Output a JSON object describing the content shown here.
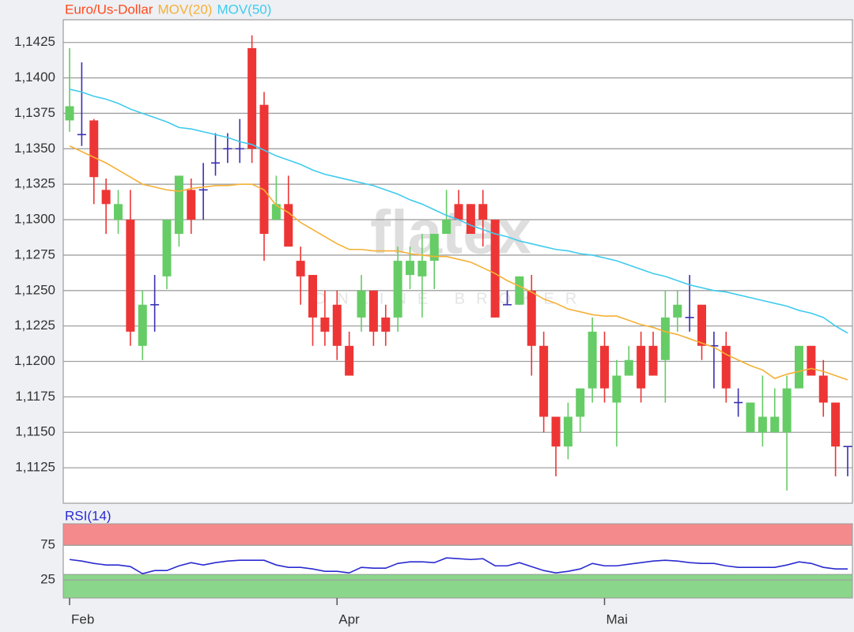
{
  "chart_data": [
    {
      "type": "candlestick",
      "watermark": "flatex",
      "watermark_sub": "ONLINE BROKER",
      "categories": [
        "Feb",
        null,
        null,
        null,
        null,
        null,
        null,
        null,
        null,
        null,
        null,
        null,
        null,
        null,
        null,
        null,
        null,
        null,
        null,
        null,
        null,
        null,
        "Apr",
        null,
        null,
        null,
        null,
        null,
        null,
        null,
        null,
        null,
        null,
        null,
        null,
        null,
        null,
        null,
        null,
        null,
        null,
        null,
        null,
        null,
        "Mai",
        null,
        null,
        null,
        null,
        null,
        null,
        null,
        null,
        null,
        null,
        null,
        null,
        null,
        null,
        null,
        null,
        null,
        null,
        null,
        null
      ],
      "series": [
        {
          "name": "Euro/Us-Dollar",
          "type": "candlestick",
          "color": "#ff4a1c",
          "color_up": "#66cc66",
          "color_down": "#ee3535",
          "color_flat": "#3a2fb0",
          "open": [
            1.137,
            1.136,
            1.137,
            1.1321,
            1.13,
            1.13,
            1.1211,
            1.124,
            1.126,
            1.129,
            1.1321,
            1.1321,
            1.134,
            1.135,
            1.135,
            1.1421,
            1.1381,
            1.13,
            1.1311,
            1.1271,
            1.1261,
            1.1231,
            1.124,
            1.1211,
            1.1231,
            1.125,
            1.1231,
            1.1231,
            1.1261,
            1.126,
            1.1271,
            1.129,
            1.1311,
            1.1311,
            1.1311,
            1.13,
            1.124,
            1.124,
            1.125,
            1.1211,
            1.1161,
            1.114,
            1.1161,
            1.1181,
            1.1211,
            1.1171,
            1.119,
            1.1211,
            1.1211,
            1.1201,
            1.1231,
            1.1231,
            1.124,
            1.1211,
            1.1211,
            1.1171,
            1.115,
            1.115,
            1.115,
            1.115,
            1.1181,
            1.1211,
            1.119,
            1.1171,
            1.114
          ],
          "high": [
            1.1421,
            1.1411,
            1.1371,
            1.1329,
            1.1321,
            1.1321,
            1.125,
            1.1261,
            1.13,
            1.1331,
            1.1329,
            1.134,
            1.1361,
            1.1361,
            1.1371,
            1.143,
            1.139,
            1.1331,
            1.1331,
            1.1281,
            1.1261,
            1.125,
            1.125,
            1.1221,
            1.1261,
            1.125,
            1.124,
            1.1281,
            1.1281,
            1.129,
            1.129,
            1.1321,
            1.1321,
            1.1311,
            1.1321,
            1.13,
            1.125,
            1.126,
            1.1261,
            1.1221,
            1.1161,
            1.1171,
            1.1181,
            1.1231,
            1.1221,
            1.1201,
            1.1211,
            1.1221,
            1.1221,
            1.125,
            1.125,
            1.1261,
            1.124,
            1.1221,
            1.1221,
            1.1181,
            1.1171,
            1.119,
            1.1181,
            1.119,
            1.1211,
            1.1211,
            1.1201,
            1.1171,
            1.114
          ],
          "low": [
            1.1362,
            1.1352,
            1.1311,
            1.129,
            1.129,
            1.1211,
            1.1201,
            1.1221,
            1.1251,
            1.1281,
            1.129,
            1.13,
            1.1331,
            1.134,
            1.134,
            1.134,
            1.1271,
            1.13,
            1.1281,
            1.124,
            1.1211,
            1.1211,
            1.1201,
            1.119,
            1.1221,
            1.1211,
            1.1211,
            1.1221,
            1.1251,
            1.1231,
            1.1251,
            1.129,
            1.13,
            1.129,
            1.1281,
            1.1231,
            1.124,
            1.124,
            1.119,
            1.115,
            1.1119,
            1.1131,
            1.115,
            1.1171,
            1.1171,
            1.114,
            1.119,
            1.1171,
            1.119,
            1.1171,
            1.1221,
            1.1221,
            1.1201,
            1.1181,
            1.1171,
            1.1161,
            1.115,
            1.114,
            1.115,
            1.1109,
            1.1181,
            1.119,
            1.1161,
            1.1119,
            1.1119
          ],
          "close": [
            1.138,
            1.136,
            1.133,
            1.1311,
            1.1311,
            1.1221,
            1.124,
            1.124,
            1.13,
            1.1331,
            1.13,
            1.1321,
            1.134,
            1.135,
            1.135,
            1.135,
            1.129,
            1.1311,
            1.1281,
            1.126,
            1.1231,
            1.1221,
            1.1211,
            1.119,
            1.125,
            1.1221,
            1.1221,
            1.1271,
            1.1271,
            1.1271,
            1.129,
            1.13,
            1.13,
            1.129,
            1.13,
            1.1231,
            1.124,
            1.126,
            1.1211,
            1.1161,
            1.114,
            1.1161,
            1.1181,
            1.1221,
            1.1181,
            1.119,
            1.1201,
            1.1181,
            1.119,
            1.1231,
            1.124,
            1.1231,
            1.1211,
            1.1211,
            1.1181,
            1.1171,
            1.1171,
            1.1161,
            1.1161,
            1.1181,
            1.1211,
            1.119,
            1.1171,
            1.114,
            1.114
          ]
        },
        {
          "name": "MOV(20)",
          "type": "line",
          "color": "#f5b035",
          "values": [
            1.1352,
            1.1348,
            1.1344,
            1.134,
            1.1335,
            1.133,
            1.1325,
            1.1323,
            1.1321,
            1.132,
            1.1322,
            1.1323,
            1.1324,
            1.1324,
            1.1325,
            1.1325,
            1.1321,
            1.131,
            1.1305,
            1.1298,
            1.1293,
            1.1288,
            1.1283,
            1.1279,
            1.1279,
            1.1278,
            1.1278,
            1.1278,
            1.1276,
            1.1275,
            1.1274,
            1.1274,
            1.1272,
            1.127,
            1.1266,
            1.1262,
            1.1257,
            1.1253,
            1.1249,
            1.1244,
            1.1241,
            1.1237,
            1.1235,
            1.1233,
            1.1232,
            1.1232,
            1.1229,
            1.1226,
            1.1224,
            1.1221,
            1.1219,
            1.1216,
            1.1213,
            1.121,
            1.1205,
            1.1201,
            1.1197,
            1.1194,
            1.1188,
            1.1191,
            1.1193,
            1.1195,
            1.1193,
            1.119,
            1.1187
          ]
        },
        {
          "name": "MOV(50)",
          "type": "line",
          "color": "#3fcbee",
          "values": [
            1.1392,
            1.139,
            1.1387,
            1.1385,
            1.1382,
            1.1378,
            1.1375,
            1.1372,
            1.1369,
            1.1365,
            1.1364,
            1.1362,
            1.136,
            1.1358,
            1.1355,
            1.1353,
            1.1349,
            1.1345,
            1.1342,
            1.1339,
            1.1335,
            1.1332,
            1.133,
            1.1328,
            1.1326,
            1.1324,
            1.1321,
            1.1318,
            1.1314,
            1.1311,
            1.1307,
            1.1303,
            1.13,
            1.1296,
            1.1293,
            1.129,
            1.1288,
            1.1285,
            1.1283,
            1.1281,
            1.1279,
            1.1278,
            1.1276,
            1.1275,
            1.1273,
            1.1271,
            1.1268,
            1.1265,
            1.1262,
            1.126,
            1.1257,
            1.1254,
            1.1252,
            1.125,
            1.1249,
            1.1247,
            1.1245,
            1.1243,
            1.1241,
            1.1239,
            1.1236,
            1.1234,
            1.1231,
            1.1225,
            1.122
          ]
        }
      ],
      "ylim": [
        1.11,
        1.1441
      ],
      "yticks": [
        {
          "value": 1.1125,
          "label": "1,1125"
        },
        {
          "value": 1.115,
          "label": "1,1150"
        },
        {
          "value": 1.1175,
          "label": "1,1175"
        },
        {
          "value": 1.12,
          "label": "1,1200"
        },
        {
          "value": 1.1225,
          "label": "1,1225"
        },
        {
          "value": 1.125,
          "label": "1,1250"
        },
        {
          "value": 1.1275,
          "label": "1,1275"
        },
        {
          "value": 1.13,
          "label": "1,1300"
        },
        {
          "value": 1.1325,
          "label": "1,1325"
        },
        {
          "value": 1.135,
          "label": "1,1350"
        },
        {
          "value": 1.1375,
          "label": "1,1375"
        },
        {
          "value": 1.14,
          "label": "1,1400"
        },
        {
          "value": 1.1425,
          "label": "1,1425"
        }
      ],
      "grid": true
    },
    {
      "type": "line",
      "series": [
        {
          "name": "RSI(14)",
          "color": "#2a2ad0",
          "values": [
            54.5,
            52.3,
            48.9,
            46.6,
            46.6,
            44.3,
            34.1,
            38.6,
            38.6,
            45.4,
            50.0,
            46.6,
            50.0,
            52.3,
            53.4,
            53.4,
            53.4,
            46.6,
            43.2,
            43.2,
            40.9,
            37.5,
            37.5,
            35.2,
            43.2,
            42.0,
            42.0,
            48.9,
            51.1,
            51.1,
            50.0,
            56.8,
            55.7,
            54.5,
            55.7,
            45.4,
            45.4,
            50.0,
            44.3,
            38.6,
            35.2,
            37.5,
            40.9,
            48.9,
            45.4,
            45.4,
            47.7,
            50.0,
            52.3,
            53.4,
            52.3,
            50.0,
            48.9,
            48.9,
            45.4,
            43.2,
            43.2,
            43.2,
            43.2,
            46.6,
            51.1,
            48.9,
            43.2,
            40.9,
            40.9
          ]
        }
      ],
      "bands": [
        {
          "from": 75,
          "to": 106,
          "color": "#f58a8c"
        },
        {
          "from": -1,
          "to": 33,
          "color": "#8ad68a"
        }
      ],
      "ylim": [
        -1,
        106
      ],
      "yticks": [
        25,
        75
      ],
      "grid": true
    }
  ]
}
